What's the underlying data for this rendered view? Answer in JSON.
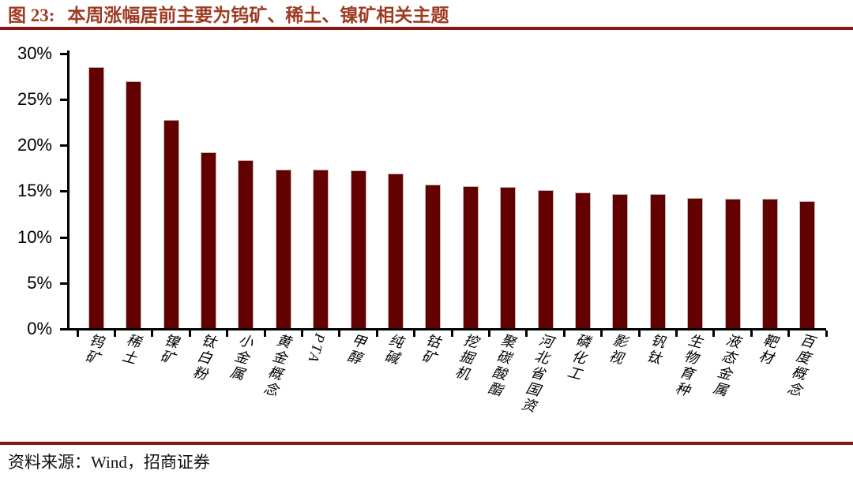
{
  "figure": {
    "label": "图 23:",
    "title": "本周涨幅居前主要为钨矿、稀土、镍矿相关主题"
  },
  "footer": {
    "source": "资料来源：Wind，招商证券"
  },
  "colors": {
    "bar_fill": "#630101",
    "title_text": "#9E3B22",
    "rule": "#8A1410",
    "axis": "#000000"
  },
  "chart_data": {
    "type": "bar",
    "title": "本周涨幅居前主要为钨矿、稀土、镍矿相关主题",
    "categories": [
      "钨矿",
      "稀土",
      "镍矿",
      "钛白粉",
      "小金属",
      "黄金概念",
      "PTA",
      "甲醇",
      "纯碱",
      "钴矿",
      "挖掘机",
      "聚碳酸酯",
      "河北省国资",
      "磷化工",
      "影视",
      "钒钛",
      "生物育种",
      "液态金属",
      "靶材",
      "百度概念"
    ],
    "values": [
      28.4,
      26.9,
      22.7,
      19.2,
      18.3,
      17.3,
      17.3,
      17.2,
      16.8,
      15.6,
      15.5,
      15.4,
      15.0,
      14.8,
      14.6,
      14.6,
      14.2,
      14.1,
      14.1,
      13.8
    ],
    "value_unit": "%",
    "xlabel": "",
    "ylabel": "",
    "ylim": [
      0,
      30
    ],
    "ytick_step": 5,
    "ytick_labels": [
      "0%",
      "5%",
      "10%",
      "15%",
      "20%",
      "25%",
      "30%"
    ],
    "grid": false,
    "legend_position": "none"
  }
}
